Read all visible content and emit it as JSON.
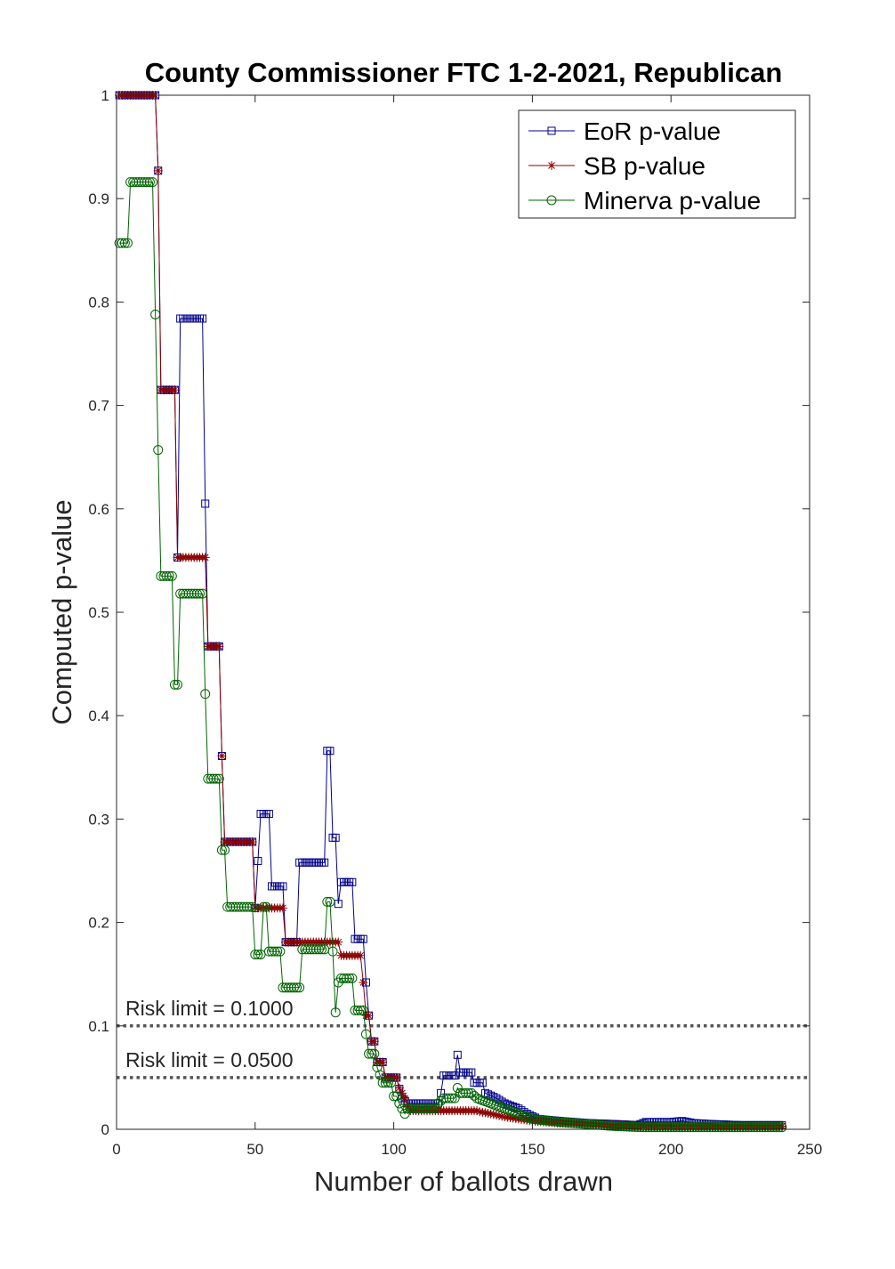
{
  "chart_data": {
    "type": "line",
    "title": "County Commissioner FTC 1-2-2021, Republican",
    "xlabel": "Number of ballots drawn",
    "ylabel": "Computed p-value",
    "xlim": [
      0,
      250
    ],
    "ylim": [
      0,
      1
    ],
    "xticks": [
      0,
      50,
      100,
      150,
      200,
      250
    ],
    "xtick_labels": [
      "0",
      "50",
      "100",
      "150",
      "200",
      "250"
    ],
    "yticks": [
      0,
      0.1,
      0.2,
      0.3,
      0.4,
      0.5,
      0.6,
      0.7,
      0.8,
      0.9,
      1
    ],
    "ytick_labels": [
      "0",
      "0.1",
      "0.2",
      "0.3",
      "0.4",
      "0.5",
      "0.6",
      "0.7",
      "0.8",
      "0.9",
      "1"
    ],
    "grid": false,
    "legend_position": "top-right",
    "reference_lines": [
      {
        "y": 0.1,
        "label": "Risk limit = 0.1000",
        "color": "#555555",
        "style": "dotted"
      },
      {
        "y": 0.05,
        "label": "Risk limit = 0.0500",
        "color": "#555555",
        "style": "dotted"
      }
    ],
    "series": [
      {
        "name": "EoR p-value",
        "color": "#00008b",
        "marker": "square",
        "points": [
          [
            1,
            1
          ],
          [
            14,
            1
          ],
          [
            15,
            0.927
          ],
          [
            16,
            0.715
          ],
          [
            21,
            0.715
          ],
          [
            22,
            0.553
          ],
          [
            23,
            0.784
          ],
          [
            31,
            0.784
          ],
          [
            32,
            0.605
          ],
          [
            33,
            0.467
          ],
          [
            37,
            0.467
          ],
          [
            38,
            0.361
          ],
          [
            39,
            0.278
          ],
          [
            49,
            0.278
          ],
          [
            50,
            0.214
          ],
          [
            52,
            0.305
          ],
          [
            55,
            0.305
          ],
          [
            56,
            0.235
          ],
          [
            60,
            0.235
          ],
          [
            61,
            0.181
          ],
          [
            65,
            0.181
          ],
          [
            66,
            0.258
          ],
          [
            75,
            0.258
          ],
          [
            76,
            0.366
          ],
          [
            77,
            0.366
          ],
          [
            78,
            0.282
          ],
          [
            79,
            0.282
          ],
          [
            80,
            0.218
          ],
          [
            81,
            0.239
          ],
          [
            85,
            0.239
          ],
          [
            86,
            0.184
          ],
          [
            89,
            0.184
          ],
          [
            90,
            0.142
          ],
          [
            91,
            0.11
          ],
          [
            92,
            0.085
          ],
          [
            93,
            0.085
          ],
          [
            94,
            0.065
          ],
          [
            96,
            0.065
          ],
          [
            97,
            0.05
          ],
          [
            101,
            0.05
          ],
          [
            102,
            0.039
          ],
          [
            103,
            0.03
          ],
          [
            105,
            0.025
          ],
          [
            116,
            0.025
          ],
          [
            117,
            0.035
          ],
          [
            118,
            0.052
          ],
          [
            122,
            0.052
          ],
          [
            123,
            0.072
          ],
          [
            124,
            0.055
          ],
          [
            128,
            0.055
          ],
          [
            129,
            0.045
          ],
          [
            132,
            0.045
          ],
          [
            133,
            0.035
          ],
          [
            137,
            0.03
          ],
          [
            140,
            0.025
          ],
          [
            145,
            0.02
          ],
          [
            148,
            0.015
          ],
          [
            152,
            0.01
          ],
          [
            160,
            0.008
          ],
          [
            170,
            0.006
          ],
          [
            180,
            0.005
          ],
          [
            188,
            0.004
          ],
          [
            191,
            0.007
          ],
          [
            200,
            0.007
          ],
          [
            204,
            0.008
          ],
          [
            208,
            0.006
          ],
          [
            215,
            0.005
          ],
          [
            225,
            0.004
          ],
          [
            235,
            0.004
          ],
          [
            240,
            0.004
          ]
        ]
      },
      {
        "name": "SB p-value",
        "color": "#8b0000",
        "marker": "asterisk",
        "points": [
          [
            1,
            1
          ],
          [
            14,
            1
          ],
          [
            15,
            0.927
          ],
          [
            16,
            0.715
          ],
          [
            21,
            0.715
          ],
          [
            22,
            0.553
          ],
          [
            32,
            0.553
          ],
          [
            33,
            0.467
          ],
          [
            37,
            0.467
          ],
          [
            38,
            0.361
          ],
          [
            39,
            0.278
          ],
          [
            49,
            0.278
          ],
          [
            50,
            0.214
          ],
          [
            60,
            0.214
          ],
          [
            61,
            0.181
          ],
          [
            80,
            0.181
          ],
          [
            81,
            0.168
          ],
          [
            88,
            0.168
          ],
          [
            89,
            0.142
          ],
          [
            90,
            0.11
          ],
          [
            91,
            0.11
          ],
          [
            92,
            0.085
          ],
          [
            93,
            0.085
          ],
          [
            94,
            0.065
          ],
          [
            96,
            0.065
          ],
          [
            97,
            0.05
          ],
          [
            101,
            0.05
          ],
          [
            102,
            0.04
          ],
          [
            104,
            0.03
          ],
          [
            105,
            0.022
          ],
          [
            106,
            0.018
          ],
          [
            130,
            0.018
          ],
          [
            131,
            0.017
          ],
          [
            135,
            0.015
          ],
          [
            140,
            0.012
          ],
          [
            145,
            0.01
          ],
          [
            150,
            0.008
          ],
          [
            160,
            0.006
          ],
          [
            170,
            0.005
          ],
          [
            180,
            0.004
          ],
          [
            200,
            0.003
          ],
          [
            220,
            0.003
          ],
          [
            240,
            0.003
          ]
        ]
      },
      {
        "name": "Minerva p-value",
        "color": "#006400",
        "marker": "circle",
        "points": [
          [
            1,
            0.857
          ],
          [
            4,
            0.857
          ],
          [
            5,
            0.916
          ],
          [
            13,
            0.916
          ],
          [
            14,
            0.788
          ],
          [
            15,
            0.657
          ],
          [
            16,
            0.535
          ],
          [
            20,
            0.535
          ],
          [
            21,
            0.43
          ],
          [
            22,
            0.43
          ],
          [
            23,
            0.518
          ],
          [
            31,
            0.518
          ],
          [
            32,
            0.421
          ],
          [
            33,
            0.339
          ],
          [
            37,
            0.339
          ],
          [
            38,
            0.27
          ],
          [
            39,
            0.27
          ],
          [
            40,
            0.215
          ],
          [
            49,
            0.215
          ],
          [
            50,
            0.169
          ],
          [
            52,
            0.169
          ],
          [
            53,
            0.215
          ],
          [
            54,
            0.215
          ],
          [
            55,
            0.172
          ],
          [
            59,
            0.172
          ],
          [
            60,
            0.137
          ],
          [
            66,
            0.137
          ],
          [
            67,
            0.174
          ],
          [
            75,
            0.174
          ],
          [
            76,
            0.22
          ],
          [
            77,
            0.22
          ],
          [
            78,
            0.172
          ],
          [
            79,
            0.113
          ],
          [
            80,
            0.142
          ],
          [
            81,
            0.146
          ],
          [
            85,
            0.146
          ],
          [
            86,
            0.115
          ],
          [
            89,
            0.115
          ],
          [
            90,
            0.092
          ],
          [
            91,
            0.073
          ],
          [
            93,
            0.073
          ],
          [
            94,
            0.06
          ],
          [
            96,
            0.045
          ],
          [
            99,
            0.045
          ],
          [
            100,
            0.032
          ],
          [
            101,
            0.032
          ],
          [
            102,
            0.025
          ],
          [
            103,
            0.02
          ],
          [
            104,
            0.015
          ],
          [
            105,
            0.02
          ],
          [
            115,
            0.02
          ],
          [
            116,
            0.025
          ],
          [
            118,
            0.03
          ],
          [
            122,
            0.03
          ],
          [
            123,
            0.04
          ],
          [
            124,
            0.035
          ],
          [
            128,
            0.035
          ],
          [
            130,
            0.03
          ],
          [
            135,
            0.025
          ],
          [
            140,
            0.02
          ],
          [
            145,
            0.015
          ],
          [
            150,
            0.01
          ],
          [
            160,
            0.007
          ],
          [
            170,
            0.005
          ],
          [
            180,
            0.003
          ],
          [
            190,
            0.002
          ],
          [
            200,
            0.002
          ],
          [
            220,
            0.002
          ],
          [
            240,
            0.002
          ]
        ]
      }
    ]
  }
}
